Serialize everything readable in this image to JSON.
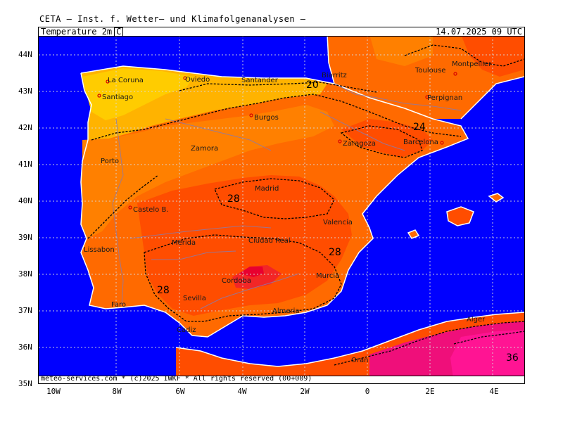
{
  "header": {
    "title": "CETA — Inst. f. Wetter— und Klimafolgenanalysen —",
    "parameter": "Temperature 2m",
    "unit": "C",
    "valid_time": "14.07.2025 09 UTC"
  },
  "footer": {
    "copyright": "meteo-services.com * (c)2025 IWKF * All rights reserved (00+009)"
  },
  "axes": {
    "lat_labels": [
      "44N",
      "43N",
      "42N",
      "41N",
      "40N",
      "39N",
      "38N",
      "37N",
      "36N",
      "35N"
    ],
    "lon_labels": [
      "10W",
      "8W",
      "6W",
      "4W",
      "2W",
      "0",
      "2E",
      "4E"
    ]
  },
  "cities": [
    {
      "name": "La Coruna"
    },
    {
      "name": "Oviedo"
    },
    {
      "name": "Santander"
    },
    {
      "name": "Biarritz"
    },
    {
      "name": "Toulouse"
    },
    {
      "name": "Montpellier"
    },
    {
      "name": "Santiago"
    },
    {
      "name": "Perpignan"
    },
    {
      "name": "Burgos"
    },
    {
      "name": "Zaragoza"
    },
    {
      "name": "Barcelona"
    },
    {
      "name": "Zamora"
    },
    {
      "name": "Porto"
    },
    {
      "name": "Madrid"
    },
    {
      "name": "Castelo B."
    },
    {
      "name": "Valencia"
    },
    {
      "name": "Lissabon"
    },
    {
      "name": "Merida"
    },
    {
      "name": "Ciudad Real"
    },
    {
      "name": "Cordoba"
    },
    {
      "name": "Murcia"
    },
    {
      "name": "Sevilla"
    },
    {
      "name": "Almeria"
    },
    {
      "name": "Faro"
    },
    {
      "name": "Cadiz"
    },
    {
      "name": "Alger"
    },
    {
      "name": "Oran"
    }
  ],
  "contour_labels": [
    "20",
    "24",
    "28",
    "28",
    "28",
    "36"
  ],
  "colors": {
    "sea": "#0000ff",
    "t_18_20": "#ffcc00",
    "t_20_22": "#ffb300",
    "t_22_24": "#ff9d1f",
    "t_24_26": "#ff8000",
    "t_26_28": "#ff6a00",
    "t_28_30": "#ff4d00",
    "t_30_32": "#f22626",
    "t_32_34": "#e8002f",
    "t_34_36": "#ef0f7a",
    "t_36_plus": "#ff1493"
  }
}
